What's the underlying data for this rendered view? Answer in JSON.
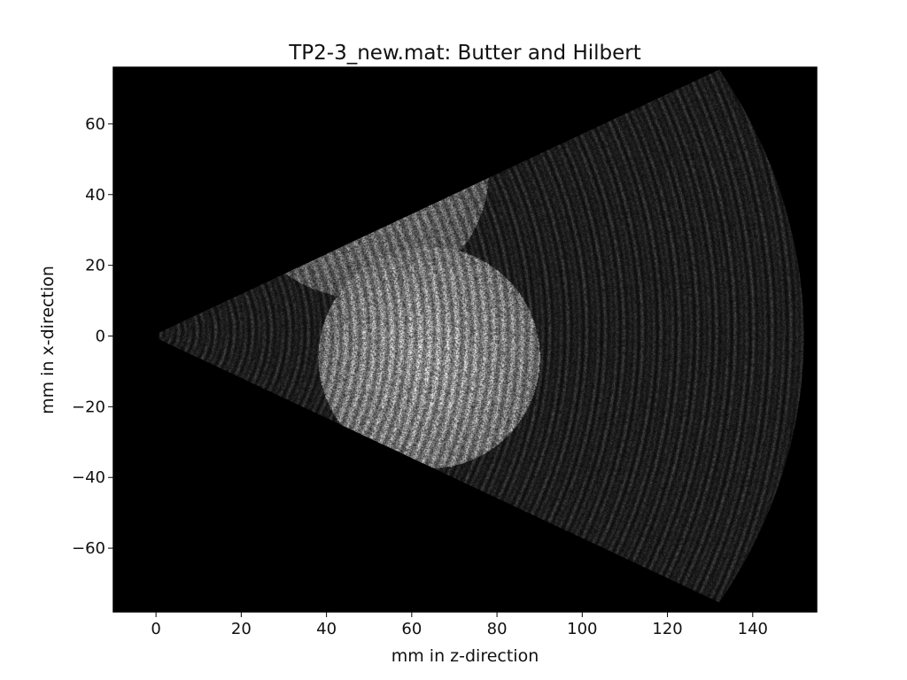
{
  "chart_data": {
    "type": "heatmap",
    "title": "TP2-3_new.mat: Butter and Hilbert",
    "xlabel": "mm in z-direction",
    "ylabel": "mm in x-direction",
    "xlim": [
      -10,
      155
    ],
    "ylim": [
      -78,
      76
    ],
    "xticks": [
      0,
      20,
      40,
      60,
      80,
      100,
      120,
      140
    ],
    "yticks": [
      60,
      40,
      20,
      0,
      -20,
      -40,
      -60
    ],
    "xtick_labels": [
      "0",
      "20",
      "40",
      "60",
      "80",
      "100",
      "120",
      "140"
    ],
    "ytick_labels": [
      "60",
      "40",
      "20",
      "0",
      "−20",
      "−40",
      "−60"
    ],
    "colormap": "gray",
    "background_color": "#000000",
    "grid": false,
    "sector": {
      "apex": [
        -1,
        0
      ],
      "near_radius": 2,
      "far_radius": 153,
      "half_angle_deg": 29.5
    },
    "bright_regions": [
      {
        "shape": "circle",
        "center": [
          64,
          -6
        ],
        "radius": 26,
        "brightness": 0.78
      },
      {
        "shape": "circle",
        "center": [
          48,
          47
        ],
        "radius": 30,
        "brightness": 0.62
      }
    ]
  }
}
